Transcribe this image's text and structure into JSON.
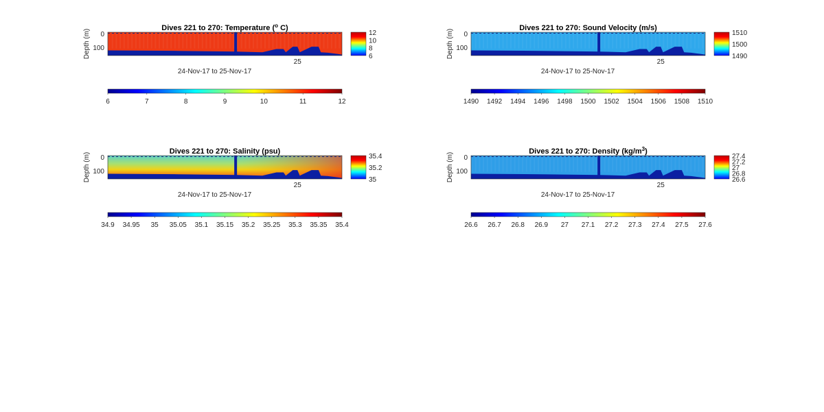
{
  "chart_data": [
    {
      "type": "heatmap",
      "title": "Dives 221 to 270: Temperature (",
      "title_unit_sup": "o",
      "title_unit_tail": " C)",
      "ylabel": "Depth (m)",
      "xlabel": "24-Nov-17 to 25-Nov-17",
      "x_tick_labels": [
        "25"
      ],
      "y_tick_labels": [
        "0",
        "100"
      ],
      "side_colorbar_ticks": [
        "12",
        "10",
        "8",
        "6"
      ],
      "colorbar_ticks": [
        "6",
        "7",
        "8",
        "9",
        "10",
        "11",
        "12"
      ],
      "clim": [
        6,
        12
      ],
      "typical_value": 11.5,
      "colors": {
        "field": "#ee3a16",
        "seafloor": "#0b1fa2"
      }
    },
    {
      "type": "heatmap",
      "title": "Dives 221 to 270: Sound Velocity (m/s)",
      "ylabel": "Depth (m)",
      "xlabel": "24-Nov-17 to 25-Nov-17",
      "x_tick_labels": [
        "25"
      ],
      "y_tick_labels": [
        "0",
        "100"
      ],
      "side_colorbar_ticks": [
        "1510",
        "1500",
        "1490"
      ],
      "colorbar_ticks": [
        "1490",
        "1492",
        "1494",
        "1496",
        "1498",
        "1500",
        "1502",
        "1504",
        "1506",
        "1508",
        "1510"
      ],
      "clim": [
        1490,
        1510
      ],
      "typical_value": 1496,
      "colors": {
        "field": "#2fa8ec",
        "seafloor": "#0b1fa2"
      }
    },
    {
      "type": "heatmap",
      "title": "Dives 221 to 270: Salinity (psu)",
      "ylabel": "Depth (m)",
      "xlabel": "24-Nov-17 to 25-Nov-17",
      "x_tick_labels": [
        "25"
      ],
      "y_tick_labels": [
        "0",
        "100"
      ],
      "side_colorbar_ticks": [
        "35.4",
        "35.2",
        "35"
      ],
      "colorbar_ticks": [
        "34.9",
        "34.95",
        "35",
        "35.05",
        "35.1",
        "35.15",
        "35.2",
        "35.25",
        "35.3",
        "35.35",
        "35.4"
      ],
      "clim": [
        34.9,
        35.4
      ],
      "typical_value": 35.2,
      "colors": {
        "surface": "#5fd0c8",
        "mid": "#f1d216",
        "deep": "#f0781a",
        "seafloor": "#0b1fa2"
      }
    },
    {
      "type": "heatmap",
      "title": "Dives 221 to 270: Density (kg/m",
      "title_unit_sup": "3",
      "title_unit_tail": ")",
      "ylabel": "Depth (m)",
      "xlabel": "24-Nov-17 to 25-Nov-17",
      "x_tick_labels": [
        "25"
      ],
      "y_tick_labels": [
        "0",
        "100"
      ],
      "side_colorbar_ticks": [
        "27.4",
        "27.2",
        "27",
        "26.8",
        "26.6"
      ],
      "colorbar_ticks": [
        "26.6",
        "26.7",
        "26.8",
        "26.9",
        "27",
        "27.1",
        "27.2",
        "27.3",
        "27.4",
        "27.5",
        "27.6"
      ],
      "clim": [
        26.6,
        27.6
      ],
      "typical_value": 26.85,
      "colors": {
        "field": "#2f9ee8",
        "seafloor": "#0b1fa2"
      }
    }
  ]
}
